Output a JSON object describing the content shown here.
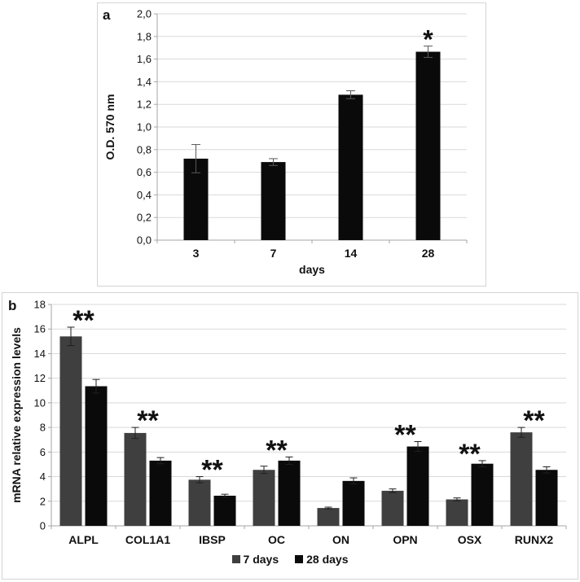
{
  "chart_data": [
    {
      "type": "bar",
      "panel_label": "a",
      "categories": [
        "3",
        "7",
        "14",
        "28"
      ],
      "series": [
        {
          "name": "O.D. 570 nm",
          "color": "#0a0a0a",
          "values": [
            0.72,
            0.69,
            1.285,
            1.665
          ],
          "errors": [
            0.125,
            0.03,
            0.035,
            0.05
          ]
        }
      ],
      "significance": [
        "",
        "",
        "",
        "*"
      ],
      "ylabel": "O.D. 570 nm",
      "xlabel": "days",
      "ylim": [
        0,
        2.0
      ],
      "ytick_labels": [
        "0,0",
        "0,2",
        "0,4",
        "0,6",
        "0,8",
        "1,0",
        "1,2",
        "1,4",
        "1,6",
        "1,8",
        "2,0"
      ],
      "grid": true,
      "legend": null
    },
    {
      "type": "grouped-bar",
      "panel_label": "b",
      "categories": [
        "ALPL",
        "COL1A1",
        "IBSP",
        "OC",
        "ON",
        "OPN",
        "OSX",
        "RUNX2"
      ],
      "series": [
        {
          "name": "7 days",
          "color": "#3f3f3f",
          "values": [
            15.4,
            7.55,
            3.75,
            4.55,
            1.45,
            2.85,
            2.15,
            7.6
          ],
          "errors": [
            0.75,
            0.45,
            0.25,
            0.3,
            0.07,
            0.15,
            0.12,
            0.4
          ]
        },
        {
          "name": "28 days",
          "color": "#0a0a0a",
          "values": [
            11.35,
            5.3,
            2.45,
            5.3,
            3.65,
            6.45,
            5.05,
            4.55
          ],
          "errors": [
            0.55,
            0.25,
            0.12,
            0.3,
            0.25,
            0.4,
            0.25,
            0.25
          ]
        }
      ],
      "significance": [
        "**",
        "**",
        "**",
        "**",
        "",
        "**",
        "**",
        "**"
      ],
      "ylabel": "mRNA relative expression levels",
      "xlabel": "",
      "ylim": [
        0,
        18
      ],
      "ytick_labels": [
        "0",
        "2",
        "4",
        "6",
        "8",
        "10",
        "12",
        "14",
        "16",
        "18"
      ],
      "grid": true,
      "legend": {
        "position": "bottom",
        "items": [
          {
            "label": "7 days",
            "color": "#3f3f3f"
          },
          {
            "label": "28 days",
            "color": "#0a0a0a"
          }
        ]
      }
    }
  ],
  "style": {
    "grid_color": "#d9d9d9",
    "axis_color": "#a6a6a6",
    "text_color": "#111111"
  }
}
